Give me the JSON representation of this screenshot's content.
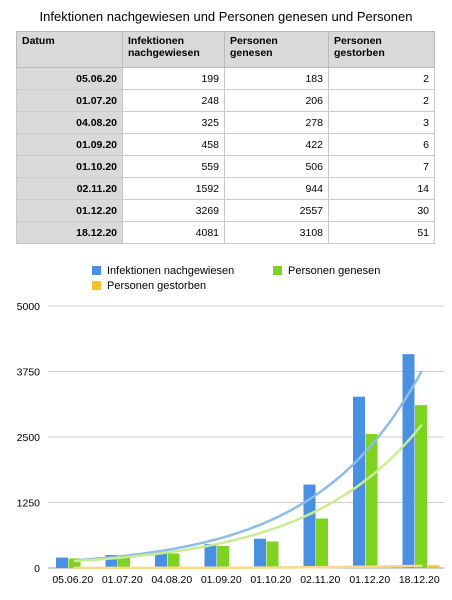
{
  "title": "Infektionen nachgewiesen und Personen genesen und Personen",
  "table": {
    "headers": [
      "Datum",
      "Infektionen nachgewiesen",
      "Personen genesen",
      "Personen gestorben"
    ],
    "rows": [
      [
        "05.06.20",
        "199",
        "183",
        "2"
      ],
      [
        "01.07.20",
        "248",
        "206",
        "2"
      ],
      [
        "04.08.20",
        "325",
        "278",
        "3"
      ],
      [
        "01.09.20",
        "458",
        "422",
        "6"
      ],
      [
        "01.10.20",
        "559",
        "506",
        "7"
      ],
      [
        "02.11.20",
        "1592",
        "944",
        "14"
      ],
      [
        "01.12.20",
        "3269",
        "2557",
        "30"
      ],
      [
        "18.12.20",
        "4081",
        "3108",
        "51"
      ]
    ]
  },
  "colors": {
    "infektionen": "#4a90e2",
    "genesen": "#7ed321",
    "gestorben": "#f5c12e",
    "trend_infektionen": "#8fbce8",
    "trend_genesen": "#c9ec92",
    "trend_gestorben": "#f8da8a",
    "grid": "#cccccc",
    "header_bg": "#d9d9d9"
  },
  "chart_data": {
    "type": "bar",
    "categories": [
      "05.06.20",
      "01.07.20",
      "04.08.20",
      "01.09.20",
      "01.10.20",
      "02.11.20",
      "01.12.20",
      "18.12.20"
    ],
    "series": [
      {
        "name": "Infektionen nachgewiesen",
        "values": [
          199,
          248,
          325,
          458,
          559,
          1592,
          3269,
          4081
        ]
      },
      {
        "name": "Personen genesen",
        "values": [
          183,
          206,
          278,
          422,
          506,
          944,
          2557,
          3108
        ]
      },
      {
        "name": "Personen gestorben",
        "values": [
          2,
          2,
          3,
          6,
          7,
          14,
          30,
          51
        ]
      }
    ],
    "yticks": [
      "0",
      "1250",
      "2500",
      "3750",
      "5000"
    ],
    "ylim": [
      0,
      5000
    ],
    "trendlines": "exponential",
    "grid": true,
    "legend_position": "top"
  }
}
